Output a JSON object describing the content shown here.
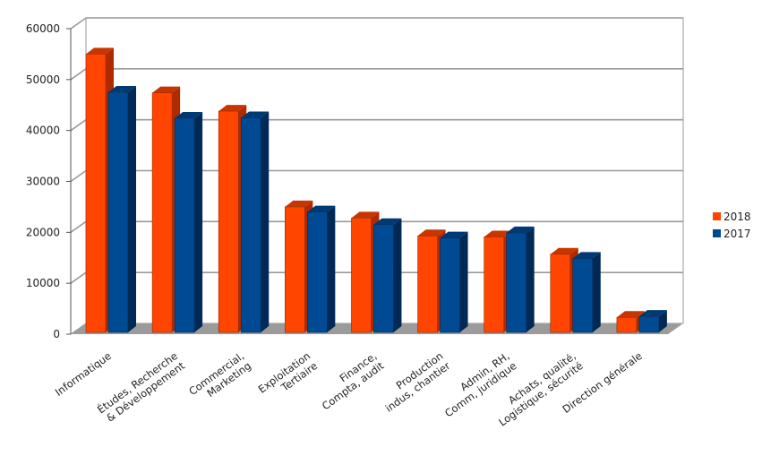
{
  "chart_data": {
    "type": "bar",
    "categories": [
      [
        "Informatique"
      ],
      [
        "Études, Recherche",
        "& Développement"
      ],
      [
        "Commercial,",
        "Marketing"
      ],
      [
        "Exploitation",
        "Tertiaire"
      ],
      [
        "Finance,",
        "Compta, audit"
      ],
      [
        "Production",
        "indus, chantier"
      ],
      [
        "Admin, RH,",
        "Comm, juridique"
      ],
      [
        "Achats, qualité,",
        "Logistique, sécurité"
      ],
      [
        "Direction générale"
      ]
    ],
    "series": [
      {
        "name": "2018",
        "color": "#ff4500",
        "side_color": "#b02a00",
        "values": [
          55000,
          47400,
          43800,
          25000,
          22800,
          19300,
          19100,
          15700,
          3300
        ]
      },
      {
        "name": "2017",
        "color": "#004a94",
        "side_color": "#002a55",
        "values": [
          47500,
          42400,
          42500,
          24000,
          21500,
          18900,
          19900,
          14900,
          3500
        ]
      }
    ],
    "ylim": [
      0,
      60000
    ],
    "yticks": [
      0,
      10000,
      20000,
      30000,
      40000,
      50000,
      60000
    ],
    "ytick_labels": [
      "0",
      "10000",
      "20000",
      "30000",
      "40000",
      "50000",
      "60000"
    ],
    "grid": true,
    "legend_position": "right",
    "style": "3d"
  }
}
